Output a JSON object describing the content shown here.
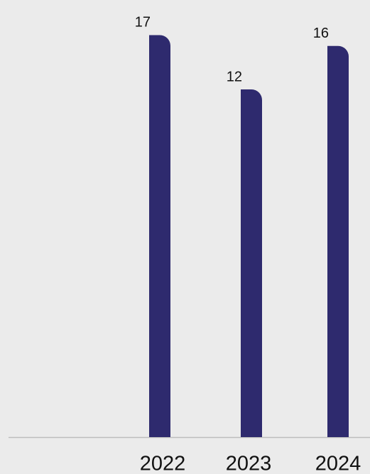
{
  "chart_data": {
    "type": "bar",
    "categories": [
      "2022",
      "2023",
      "2024"
    ],
    "values": [
      17,
      12,
      16
    ],
    "color": "#2e2a6e",
    "ylim": [
      -20,
      20
    ]
  }
}
